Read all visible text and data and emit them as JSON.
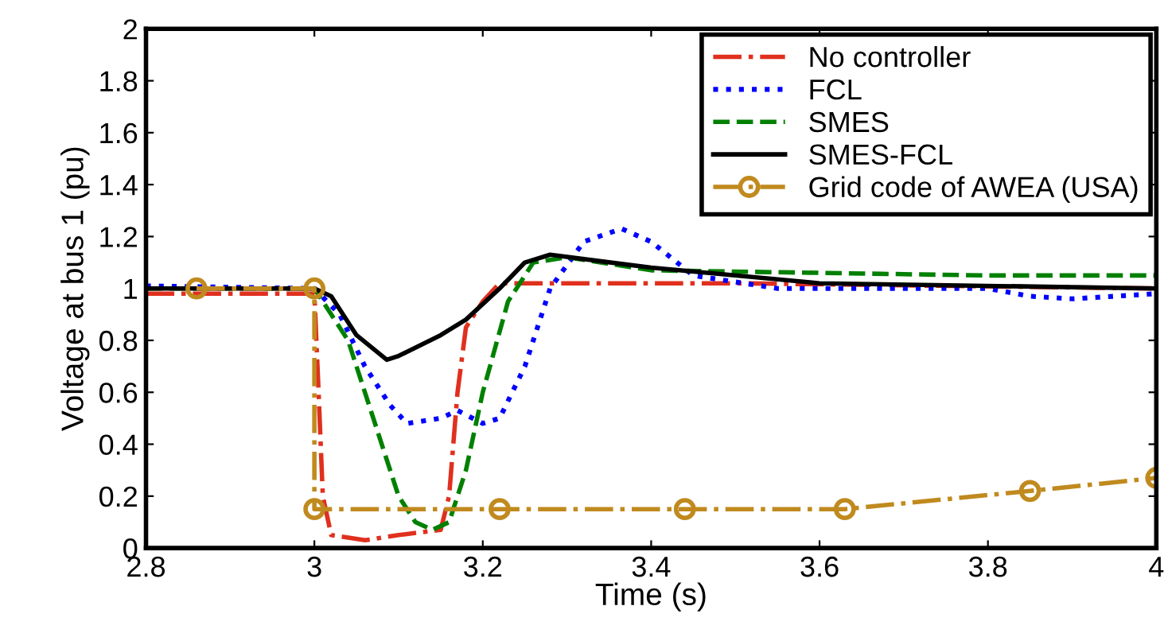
{
  "chart_data": {
    "type": "line",
    "xlabel": "Time (s)",
    "ylabel": "Voltage at bus 1 (pu)",
    "xlim": [
      2.8,
      4
    ],
    "ylim": [
      0,
      2
    ],
    "xticks": [
      2.8,
      3,
      3.2,
      3.4,
      3.6,
      3.8,
      4
    ],
    "yticks": [
      0,
      0.2,
      0.4,
      0.6,
      0.8,
      1,
      1.2,
      1.4,
      1.6,
      1.8,
      2
    ],
    "grid": false,
    "legend": "top right",
    "series": [
      {
        "name": "No controller",
        "color": "#e0301e",
        "line_style": "dashdot",
        "marker": "none",
        "x": [
          2.8,
          3.0,
          3.005,
          3.01,
          3.02,
          3.06,
          3.1,
          3.15,
          3.16,
          3.17,
          3.18,
          3.2,
          3.22,
          3.5,
          4.0
        ],
        "values": [
          0.98,
          0.98,
          0.6,
          0.2,
          0.05,
          0.03,
          0.05,
          0.07,
          0.2,
          0.6,
          0.85,
          0.95,
          1.02,
          1.02,
          1.0
        ]
      },
      {
        "name": "FCL",
        "color": "#0000ff",
        "line_style": "dotted",
        "marker": "none",
        "x": [
          2.8,
          3.0,
          3.03,
          3.06,
          3.09,
          3.11,
          3.15,
          3.17,
          3.2,
          3.22,
          3.25,
          3.28,
          3.32,
          3.365,
          3.4,
          3.45,
          3.55,
          3.8,
          3.85,
          3.9,
          4.0
        ],
        "values": [
          1.01,
          1.0,
          0.9,
          0.7,
          0.55,
          0.48,
          0.5,
          0.53,
          0.48,
          0.5,
          0.7,
          1.0,
          1.18,
          1.23,
          1.18,
          1.05,
          1.0,
          1.0,
          0.97,
          0.96,
          0.98
        ]
      },
      {
        "name": "SMES",
        "color": "#008000",
        "line_style": "dashed",
        "marker": "none",
        "x": [
          2.8,
          3.0,
          3.04,
          3.07,
          3.1,
          3.12,
          3.14,
          3.16,
          3.18,
          3.2,
          3.23,
          3.26,
          3.3,
          3.4,
          3.6,
          3.8,
          4.0
        ],
        "values": [
          1.0,
          1.0,
          0.8,
          0.5,
          0.2,
          0.1,
          0.07,
          0.1,
          0.3,
          0.6,
          0.95,
          1.1,
          1.12,
          1.07,
          1.06,
          1.05,
          1.05
        ]
      },
      {
        "name": "SMES-FCL",
        "color": "#000000",
        "line_style": "solid",
        "marker": "none",
        "x": [
          2.8,
          3.0,
          3.02,
          3.05,
          3.086,
          3.1,
          3.15,
          3.18,
          3.22,
          3.25,
          3.28,
          3.4,
          3.6,
          4.0
        ],
        "values": [
          1.0,
          1.0,
          0.97,
          0.82,
          0.725,
          0.74,
          0.82,
          0.88,
          1.0,
          1.1,
          1.13,
          1.08,
          1.02,
          1.0
        ]
      },
      {
        "name": "Grid code of AWEA (USA)",
        "color": "#c08a1e",
        "line_style": "dashdot",
        "marker": "circle",
        "x": [
          2.86,
          3.0,
          3.0,
          3.22,
          3.44,
          3.63,
          3.85,
          4.0
        ],
        "values": [
          1.0,
          1.0,
          0.15,
          0.15,
          0.15,
          0.15,
          0.22,
          0.27
        ]
      }
    ]
  }
}
